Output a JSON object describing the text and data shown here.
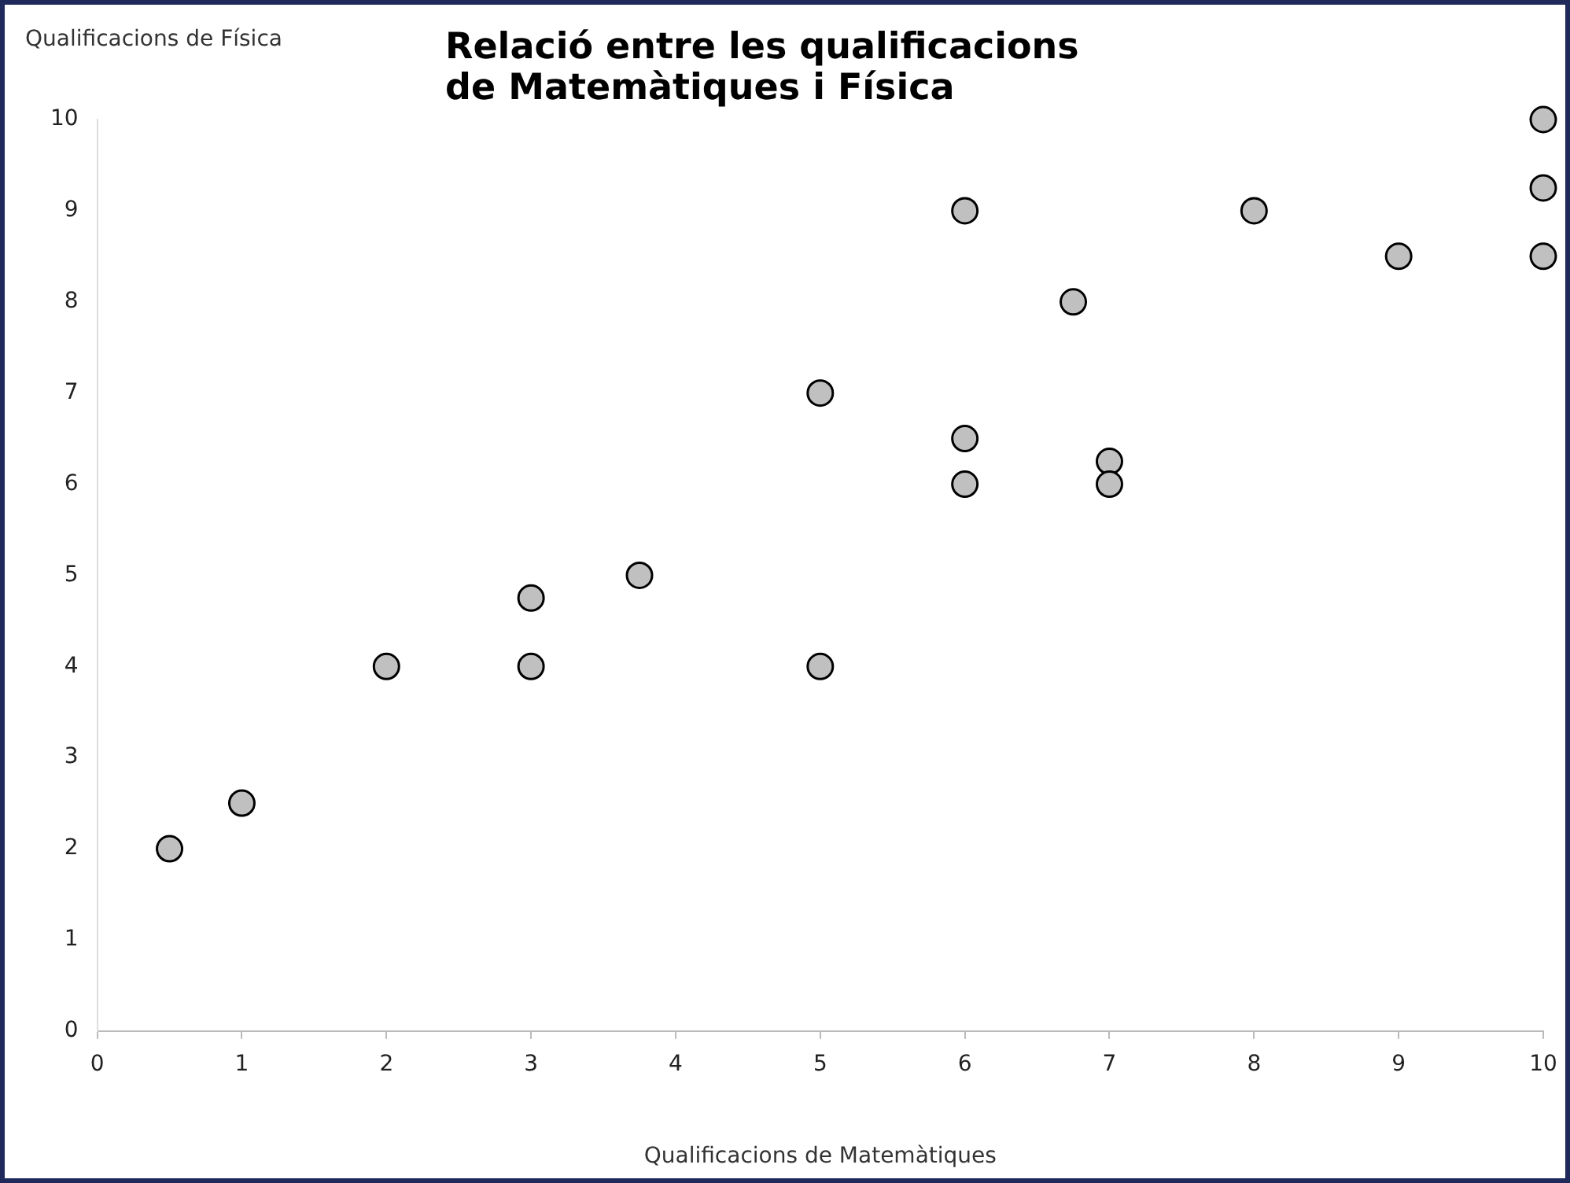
{
  "chart_data": {
    "type": "scatter",
    "title": "Relació entre les qualificacions\nde Matemàtiques i Física",
    "xlabel": "Qualificacions de Matemàtiques",
    "ylabel": "Qualificacions de Física",
    "x": [
      0.5,
      1,
      2,
      3,
      3,
      3.75,
      5,
      5,
      6,
      6,
      6,
      6.75,
      7,
      7,
      8,
      9,
      10,
      10,
      10
    ],
    "series": [
      {
        "color": "#c0c0c0",
        "values": [
          2,
          2.5,
          4,
          4.75,
          4,
          5,
          7,
          4,
          9,
          6.5,
          6,
          8,
          6.25,
          6,
          9,
          8.5,
          10,
          9.25,
          8.5
        ]
      }
    ],
    "xlim": [
      0,
      10
    ],
    "xticks": [
      0,
      1,
      2,
      3,
      4,
      5,
      6,
      7,
      8,
      9,
      10
    ],
    "ylim": [
      0,
      10
    ],
    "yticks": [
      0,
      1,
      2,
      3,
      4,
      5,
      6,
      7,
      8,
      9,
      10
    ],
    "grid": false,
    "legend": false,
    "marker": "circle"
  }
}
